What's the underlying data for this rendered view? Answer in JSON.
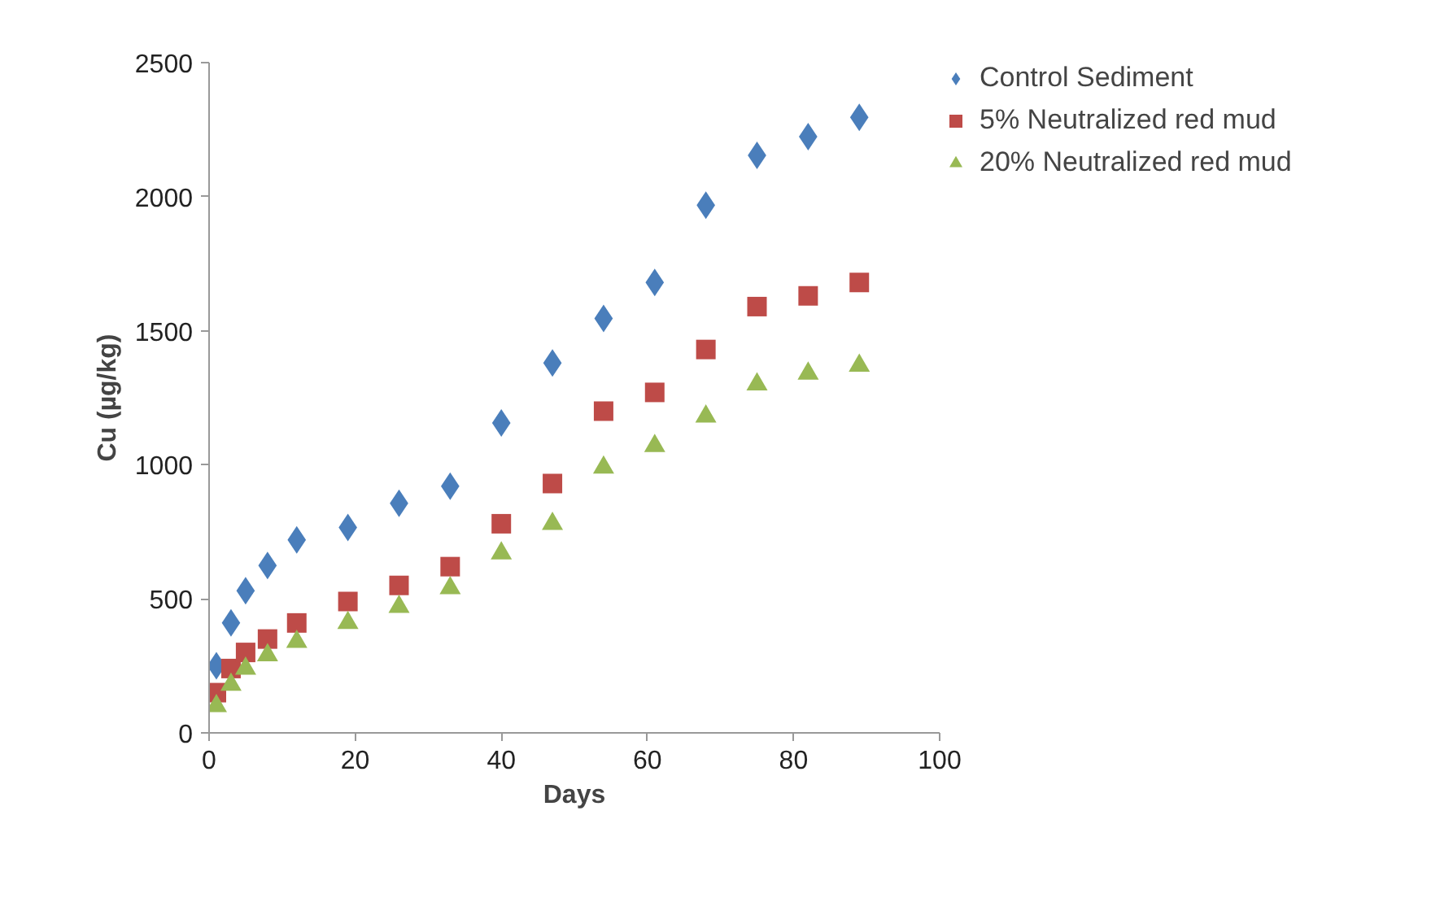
{
  "chart_data": {
    "type": "scatter",
    "xlabel": "Days",
    "ylabel": "Cu (µg/kg)",
    "x": [
      1,
      3,
      5,
      8,
      12,
      19,
      26,
      33,
      40,
      47,
      54,
      61,
      68,
      75,
      82,
      89
    ],
    "xlim": [
      0,
      100
    ],
    "xticks": [
      0,
      20,
      40,
      60,
      80,
      100
    ],
    "ylim": [
      0,
      2500
    ],
    "yticks": [
      0,
      500,
      1000,
      1500,
      2000,
      2500
    ],
    "grid": false,
    "legend": "top right",
    "series": [
      {
        "name": "Control Sediment",
        "color": "#4a7ebb",
        "marker": "diamond",
        "values": [
          250,
          410,
          530,
          624,
          720,
          766,
          856,
          920,
          1156,
          1380,
          1546,
          1680,
          1968,
          2154,
          2224,
          2296
        ]
      },
      {
        "name": "5% Neutralized red mud",
        "color": "#be4b48",
        "marker": "square",
        "values": [
          150,
          240,
          300,
          350,
          410,
          490,
          550,
          620,
          780,
          930,
          1200,
          1270,
          1430,
          1590,
          1630,
          1680
        ]
      },
      {
        "name": "20% Neutralized red mud",
        "color": "#98b954",
        "marker": "triangle",
        "values": [
          100,
          180,
          240,
          290,
          340,
          410,
          470,
          540,
          670,
          780,
          990,
          1070,
          1180,
          1300,
          1340,
          1370
        ]
      }
    ]
  }
}
